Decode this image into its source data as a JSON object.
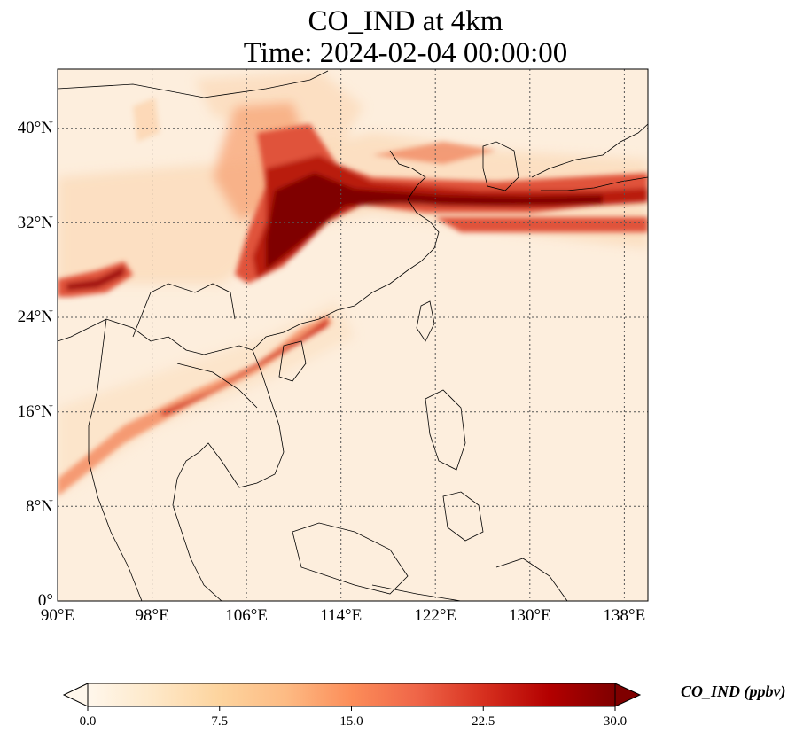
{
  "title": {
    "line1": "CO_IND at 4km",
    "line2": "Time: 2024-02-04 00:00:00"
  },
  "map": {
    "variable": "CO_IND",
    "level": "4km",
    "time": "2024-02-04 00:00:00",
    "lon_range": [
      90,
      140
    ],
    "lat_range": [
      0,
      45
    ],
    "x_ticks": [
      "90°E",
      "98°E",
      "106°E",
      "114°E",
      "122°E",
      "130°E",
      "138°E"
    ],
    "y_ticks": [
      "0°",
      "8°N",
      "16°N",
      "24°N",
      "32°N",
      "40°N"
    ],
    "gridlines": true,
    "colormap": "OrRd"
  },
  "colorbar": {
    "label": "CO_IND (ppbv)",
    "ticks": [
      "0.0",
      "7.5",
      "15.0",
      "22.5",
      "30.0"
    ],
    "min": 0.0,
    "max": 30.0,
    "extend": "both",
    "colors": [
      "#fff7ec",
      "#fee8c8",
      "#fdd49e",
      "#fdbb84",
      "#fc8d59",
      "#ef6548",
      "#d7301f",
      "#b30000",
      "#7f0000"
    ]
  }
}
